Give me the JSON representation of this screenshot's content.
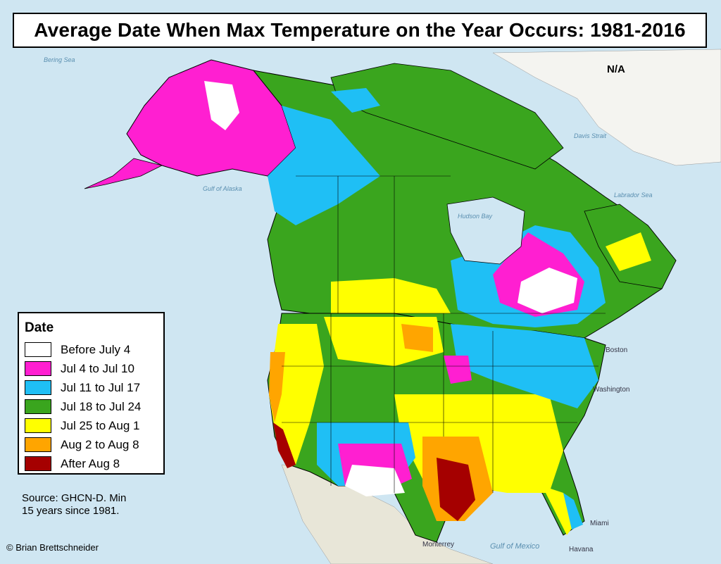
{
  "title": "Average Date When Max Temperature on the Year Occurs: 1981-2016",
  "no_data_label": "N/A",
  "legend": {
    "title": "Date",
    "items": [
      {
        "label": "Before July 4",
        "color": "#ffffff"
      },
      {
        "label": "Jul 4 to Jul 10",
        "color": "#ff1fd1"
      },
      {
        "label": "Jul 11 to Jul 17",
        "color": "#1fbff5"
      },
      {
        "label": "Jul 18 to Jul 24",
        "color": "#3aa51e"
      },
      {
        "label": "Jul 25 to Aug 1",
        "color": "#ffff00"
      },
      {
        "label": "Aug 2 to Aug 8",
        "color": "#ffa500"
      },
      {
        "label": "After Aug 8",
        "color": "#a50000"
      }
    ]
  },
  "source": {
    "line1": "Source: GHCN-D. Min",
    "line2": "15 years since 1981."
  },
  "credit": "© Brian Brettschneider",
  "place_labels": {
    "bering_sea": "Bering Sea",
    "gulf_of_alaska": "Gulf of Alaska",
    "hudson_bay": "Hudson Bay",
    "labrador_sea": "Labrador Sea",
    "davis_strait": "Davis Strait",
    "gulf_of_mexico": "Gulf of Mexico",
    "boston": "Boston",
    "washington": "Washington",
    "miami": "Miami",
    "havana": "Havana",
    "monterrey": "Monterrey"
  },
  "colors": {
    "ocean": "#cfe6f2",
    "land_nodata": "#e8e6d8",
    "border": "#000000"
  }
}
